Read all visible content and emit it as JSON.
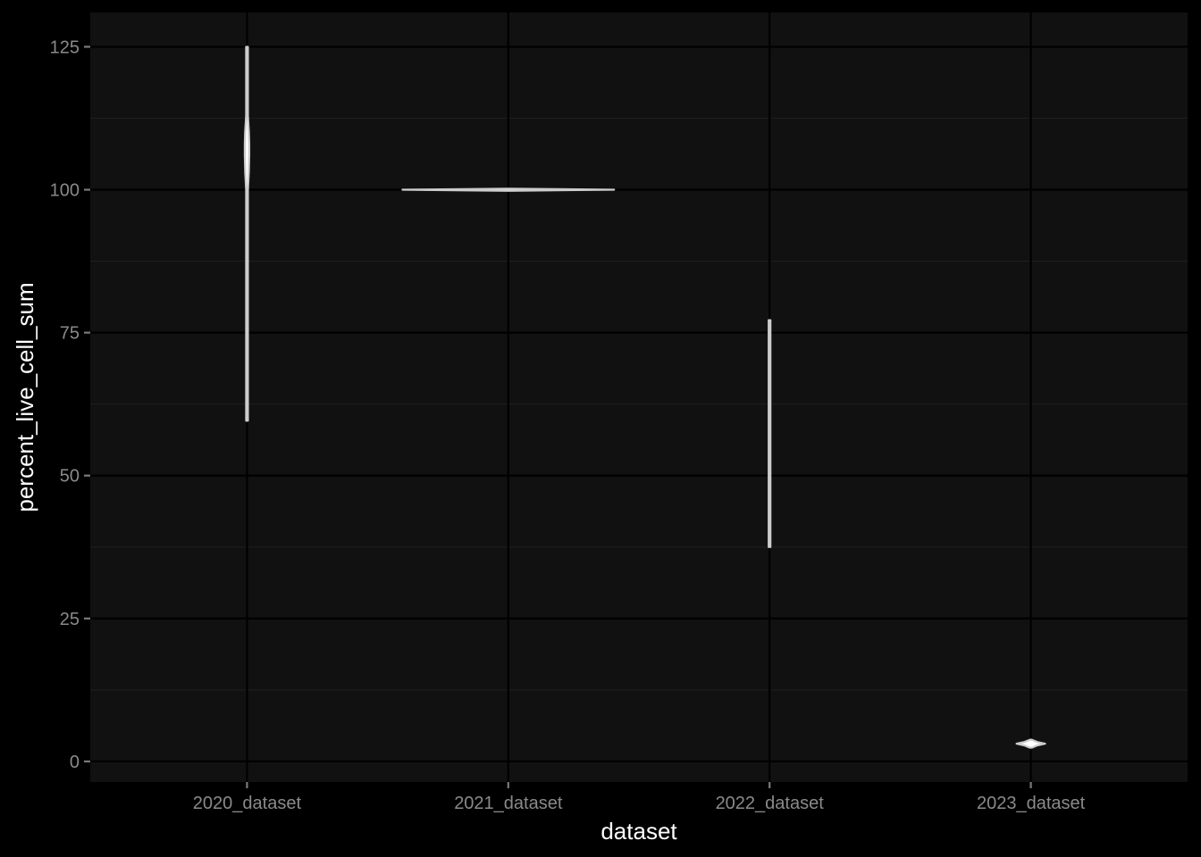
{
  "chart_data": {
    "type": "violin",
    "title": "",
    "xlabel": "dataset",
    "ylabel": "percent_live_cell_sum",
    "categories": [
      "2020_dataset",
      "2021_dataset",
      "2022_dataset",
      "2023_dataset"
    ],
    "ylim": [
      -3.6,
      131
    ],
    "yticks": [
      0,
      25,
      50,
      75,
      100,
      125
    ],
    "grid": true,
    "legend": "none",
    "colors": {
      "figure_background": "#000000",
      "panel_background": "#111111",
      "grid_major": "#000000",
      "grid_minor": "#1e1e1e",
      "violin_outline": "#cccccc",
      "tick_label": "#8a8a8a",
      "axis_title": "#ffffff"
    },
    "violins": [
      {
        "category": "2020_dataset",
        "min": 59.6,
        "max": 125,
        "profile": [
          [
            59.6,
            0.1
          ],
          [
            70,
            0.1
          ],
          [
            80,
            0.1
          ],
          [
            90,
            0.12
          ],
          [
            97,
            0.2
          ],
          [
            100,
            0.4
          ],
          [
            103,
            0.8
          ],
          [
            106,
            1.0
          ],
          [
            108,
            1.0
          ],
          [
            110,
            0.85
          ],
          [
            113,
            0.4
          ],
          [
            116,
            0.2
          ],
          [
            120,
            0.12
          ],
          [
            125,
            0.1
          ]
        ]
      },
      {
        "category": "2021_dataset",
        "min": 99.95,
        "max": 100.05,
        "profile": [
          [
            99.95,
            0.0
          ],
          [
            100,
            1.0
          ],
          [
            100.05,
            0.0
          ]
        ]
      },
      {
        "category": "2022_dataset",
        "min": 37.5,
        "max": 77.2,
        "profile": [
          [
            37.5,
            0.3
          ],
          [
            45,
            0.35
          ],
          [
            55,
            0.35
          ],
          [
            65,
            0.35
          ],
          [
            77.2,
            0.3
          ]
        ]
      },
      {
        "category": "2023_dataset",
        "min": 2.4,
        "max": 3.8,
        "profile": [
          [
            2.4,
            0.0
          ],
          [
            2.8,
            0.45
          ],
          [
            3.1,
            1.0
          ],
          [
            3.4,
            0.45
          ],
          [
            3.8,
            0.0
          ]
        ]
      }
    ]
  }
}
